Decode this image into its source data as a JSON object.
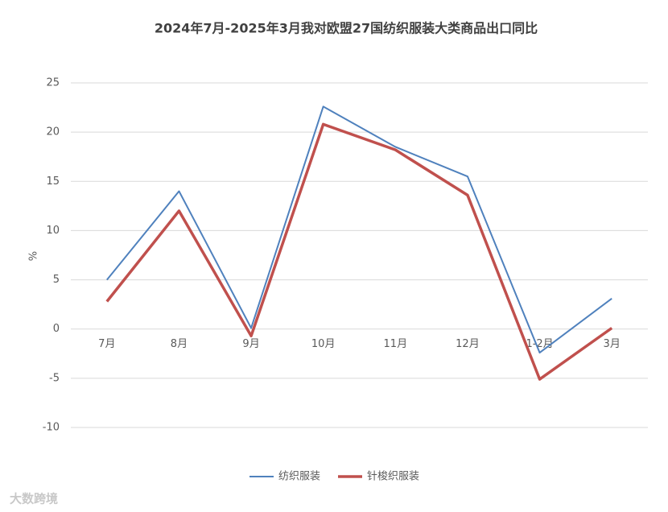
{
  "chart_data": {
    "type": "line",
    "title": "2024年7月-2025年3月我对欧盟27国纺织服装大类商品出口同比",
    "y_label": "%",
    "categories": [
      "7月",
      "8月",
      "9月",
      "10月",
      "11月",
      "12月",
      "1-2月",
      "3月"
    ],
    "series": [
      {
        "name": "纺织服装",
        "color": "#4f81bd",
        "width": 2,
        "values": [
          5.0,
          14.0,
          0.1,
          22.6,
          18.5,
          15.5,
          -2.4,
          3.1
        ]
      },
      {
        "name": "针梭织服装",
        "color": "#c0504d",
        "width": 3.5,
        "values": [
          2.8,
          12.0,
          -0.7,
          20.8,
          18.2,
          13.6,
          -5.1,
          0.1
        ]
      }
    ],
    "ylim": [
      -10,
      25
    ],
    "yticks": [
      -10,
      -5,
      0,
      5,
      10,
      15,
      20,
      25
    ],
    "grid": true,
    "legend": "bottom",
    "watermark": "大数跨境"
  }
}
